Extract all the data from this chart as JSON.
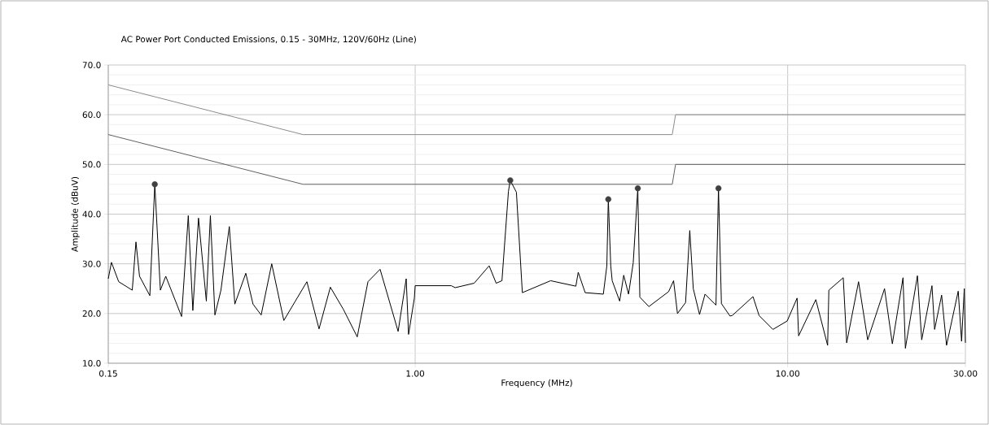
{
  "chart_data": {
    "type": "line",
    "title": "AC Power Port Conducted Emissions, 0.15 - 30MHz, 120V/60Hz (Line)",
    "xlabel": "Frequency (MHz)",
    "ylabel": "Amplitude (dBuV)",
    "log": "x",
    "grid": true,
    "xlim": [
      0.15,
      30
    ],
    "ylim": [
      10,
      70
    ],
    "xticks": [
      {
        "value": 0.15,
        "label": "0.15"
      },
      {
        "value": 1,
        "label": "1.00"
      },
      {
        "value": 10,
        "label": "10.00"
      },
      {
        "value": 30,
        "label": "30.00"
      }
    ],
    "yticks": [
      {
        "value": 10,
        "label": "10.0"
      },
      {
        "value": 20,
        "label": "20.0"
      },
      {
        "value": 30,
        "label": "30.0"
      },
      {
        "value": 40,
        "label": "40.0"
      },
      {
        "value": 50,
        "label": "50.0"
      },
      {
        "value": 60,
        "label": "60.0"
      },
      {
        "value": 70,
        "label": "70.0"
      }
    ],
    "series": [
      {
        "color": "#8c8c8c",
        "x": [
          0.15,
          0.5,
          4.9,
          5.0,
          30
        ],
        "values": [
          66,
          56,
          56,
          60,
          60
        ]
      },
      {
        "color": "#606060",
        "x": [
          0.15,
          0.5,
          4.9,
          5.0,
          30
        ],
        "values": [
          56,
          46,
          46,
          50,
          50
        ]
      },
      {
        "color": "#000000",
        "x": [
          0.15,
          0.153,
          0.16,
          0.174,
          0.178,
          0.182,
          0.194,
          0.2,
          0.207,
          0.214,
          0.236,
          0.246,
          0.253,
          0.262,
          0.275,
          0.282,
          0.29,
          0.301,
          0.317,
          0.328,
          0.351,
          0.367,
          0.386,
          0.412,
          0.444,
          0.512,
          0.552,
          0.592,
          0.642,
          0.699,
          0.747,
          0.805,
          0.9,
          0.946,
          0.96,
          0.995,
          1.0,
          1.25,
          1.28,
          1.44,
          1.58,
          1.65,
          1.71,
          1.78,
          1.8,
          1.87,
          1.94,
          2.31,
          2.7,
          2.74,
          2.86,
          3.2,
          3.27,
          3.3,
          3.35,
          3.38,
          3.54,
          3.63,
          3.74,
          3.85,
          3.96,
          4.01,
          4.24,
          4.79,
          4.94,
          5.06,
          5.32,
          5.46,
          5.58,
          5.8,
          6.0,
          6.42,
          6.52,
          6.64,
          7.0,
          7.1,
          8.07,
          8.38,
          9.13,
          9.97,
          10.6,
          10.7,
          11.9,
          12.8,
          12.9,
          14.1,
          14.4,
          15.5,
          16.4,
          18.2,
          19.1,
          20.4,
          20.7,
          22.3,
          22.9,
          24.4,
          24.8,
          25.9,
          26.7,
          28.7,
          29.3,
          29.8,
          30
        ],
        "values": [
          27.0,
          30.3,
          26.4,
          24.7,
          34.4,
          27.5,
          23.6,
          46,
          24.7,
          27.5,
          19.4,
          39.7,
          20.6,
          39.2,
          22.5,
          39.7,
          19.7,
          24.7,
          37.5,
          21.9,
          28.1,
          21.9,
          19.7,
          30.0,
          18.6,
          26.4,
          16.9,
          25.3,
          20.8,
          15.3,
          26.4,
          28.9,
          16.4,
          27.0,
          15.8,
          23.1,
          25.6,
          25.6,
          25.2,
          26.1,
          29.6,
          26.1,
          26.6,
          44.6,
          46.8,
          44.4,
          24.2,
          26.6,
          25.5,
          28.3,
          24.2,
          23.9,
          29.6,
          43.0,
          29.6,
          26.6,
          22.5,
          27.7,
          23.9,
          30.2,
          45.2,
          23.3,
          21.4,
          24.4,
          26.6,
          20.0,
          22.2,
          36.7,
          25.0,
          19.8,
          23.9,
          21.7,
          45.2,
          22.0,
          19.5,
          19.6,
          23.4,
          19.6,
          16.8,
          18.5,
          23.1,
          15.5,
          22.8,
          13.6,
          24.7,
          27.2,
          14.1,
          26.4,
          14.7,
          25.0,
          13.9,
          27.2,
          13.0,
          27.6,
          14.7,
          25.6,
          16.8,
          23.7,
          13.6,
          24.5,
          14.4,
          25.0,
          14.1
        ]
      },
      {
        "type": "scatter",
        "color": "#404040",
        "marker": "circle",
        "x": [
          0.2,
          1.8,
          3.3,
          3.96,
          6.52
        ],
        "values": [
          46,
          46.8,
          43.0,
          45.2,
          45.2
        ]
      }
    ]
  }
}
